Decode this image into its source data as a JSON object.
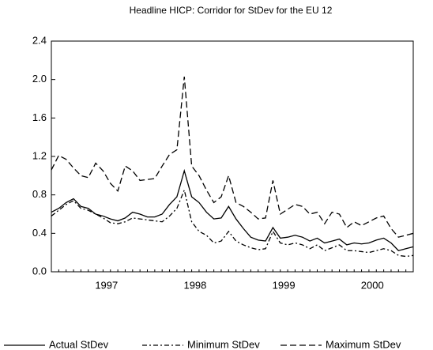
{
  "chart_data": {
    "type": "line",
    "title": "Headline HICP: Corridor for StDev for the EU 12",
    "categories": [
      null,
      null,
      null,
      null,
      null,
      null,
      null,
      null,
      "1997",
      null,
      null,
      null,
      null,
      null,
      null,
      null,
      null,
      null,
      null,
      null,
      "1998",
      null,
      null,
      null,
      null,
      null,
      null,
      null,
      null,
      null,
      null,
      null,
      "1999",
      null,
      null,
      null,
      null,
      null,
      null,
      null,
      null,
      null,
      null,
      null,
      "2000",
      null,
      null,
      null,
      null,
      null
    ],
    "series": [
      {
        "name": "Actual StDev",
        "color": "#000000",
        "style": "solid",
        "values": [
          0.62,
          0.66,
          0.72,
          0.76,
          0.68,
          0.66,
          0.6,
          0.58,
          0.55,
          0.53,
          0.56,
          0.62,
          0.6,
          0.57,
          0.57,
          0.6,
          0.7,
          0.78,
          1.05,
          0.78,
          0.72,
          0.62,
          0.55,
          0.56,
          0.68,
          0.55,
          0.45,
          0.36,
          0.33,
          0.32,
          0.46,
          0.35,
          0.36,
          0.38,
          0.36,
          0.32,
          0.35,
          0.3,
          0.32,
          0.34,
          0.28,
          0.3,
          0.29,
          0.3,
          0.33,
          0.35,
          0.3,
          0.22,
          0.24,
          0.26
        ]
      },
      {
        "name": "Minimum StDev",
        "color": "#000000",
        "style": "dashdot",
        "values": [
          0.58,
          0.64,
          0.7,
          0.74,
          0.66,
          0.64,
          0.6,
          0.56,
          0.51,
          0.5,
          0.52,
          0.56,
          0.55,
          0.54,
          0.53,
          0.52,
          0.58,
          0.66,
          0.85,
          0.52,
          0.42,
          0.38,
          0.3,
          0.32,
          0.42,
          0.32,
          0.28,
          0.25,
          0.23,
          0.24,
          0.42,
          0.3,
          0.28,
          0.3,
          0.28,
          0.24,
          0.28,
          0.22,
          0.25,
          0.28,
          0.22,
          0.22,
          0.21,
          0.2,
          0.22,
          0.24,
          0.22,
          0.17,
          0.16,
          0.17
        ]
      },
      {
        "name": "Maximum StDev",
        "color": "#000000",
        "style": "dashed",
        "values": [
          1.06,
          1.21,
          1.17,
          1.08,
          1.0,
          0.98,
          1.13,
          1.05,
          0.92,
          0.84,
          1.1,
          1.05,
          0.95,
          0.96,
          0.97,
          1.1,
          1.22,
          1.27,
          2.03,
          1.1,
          1.0,
          0.85,
          0.72,
          0.78,
          1.0,
          0.72,
          0.68,
          0.62,
          0.55,
          0.56,
          0.95,
          0.6,
          0.65,
          0.7,
          0.68,
          0.6,
          0.62,
          0.5,
          0.62,
          0.6,
          0.46,
          0.52,
          0.48,
          0.52,
          0.56,
          0.58,
          0.45,
          0.36,
          0.38,
          0.4
        ]
      }
    ],
    "ylim": [
      0,
      2.4
    ],
    "yticks": [
      {
        "value": 0,
        "label": "0.0"
      },
      0.4,
      0.8,
      1.2,
      1.6,
      {
        "value": 2,
        "label": "2.0"
      },
      2.4
    ],
    "legend": "bottom"
  }
}
